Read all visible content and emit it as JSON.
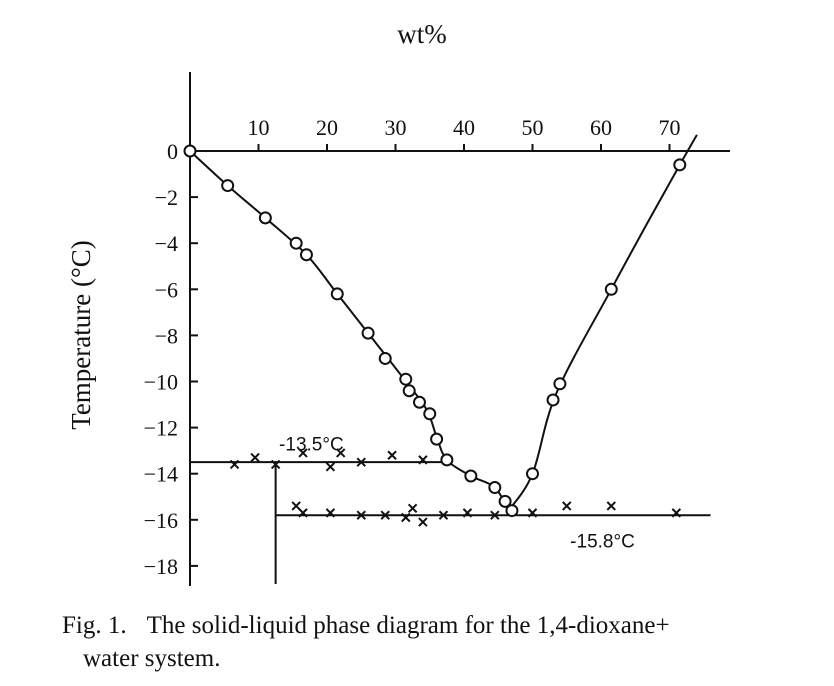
{
  "chart_data": {
    "type": "scatter",
    "title": "",
    "xlabel": "wt%",
    "ylabel": "Temperature (°C)",
    "xlim": [
      0,
      76
    ],
    "ylim": [
      -19.5,
      0
    ],
    "xticks": [
      10,
      20,
      30,
      40,
      50,
      60,
      70
    ],
    "yticks": [
      0,
      -2,
      -4,
      -6,
      -8,
      -10,
      -12,
      -14,
      -16,
      -18
    ],
    "grid": false,
    "series": [
      {
        "marker": "circle",
        "line": "liquidus (1,4-dioxane-poor branch)",
        "x": [
          0,
          5.5,
          11,
          15.5,
          17,
          21.5,
          26,
          28.5,
          31.5,
          32,
          33.5,
          35,
          36,
          37.5,
          41,
          44.5,
          46,
          47
        ],
        "y": [
          0,
          -1.5,
          -2.9,
          -4.0,
          -4.5,
          -6.2,
          -7.9,
          -9.0,
          -9.9,
          -10.4,
          -10.9,
          -11.4,
          -12.5,
          -13.4,
          -14.1,
          -14.6,
          -15.2,
          -15.6
        ]
      },
      {
        "marker": "circle",
        "line": "liquidus (1,4-dioxane-rich branch)",
        "x": [
          50,
          53,
          54,
          61.5,
          71.5
        ],
        "y": [
          -14.0,
          -10.8,
          -10.1,
          -6.0,
          -0.6
        ]
      },
      {
        "marker": "cross",
        "line": "horizontal at -13.5",
        "x": [
          6.5,
          9.5,
          12.5,
          16.5,
          20.5,
          22,
          25,
          29.5,
          34
        ],
        "y": [
          -13.6,
          -13.3,
          -13.6,
          -13.1,
          -13.7,
          -13.1,
          -13.5,
          -13.2,
          -13.4
        ]
      },
      {
        "marker": "cross",
        "line": "horizontal at -15.8",
        "x": [
          15.5,
          16.5,
          20.5,
          25,
          28.5,
          31.5,
          32.5,
          34,
          37,
          40.5,
          44.5,
          50,
          55,
          61.5,
          71
        ],
        "y": [
          -15.4,
          -15.7,
          -15.7,
          -15.8,
          -15.8,
          -15.9,
          -15.5,
          -16.1,
          -15.8,
          -15.7,
          -15.8,
          -15.7,
          -15.4,
          -15.4,
          -15.7
        ]
      }
    ],
    "annotations": [
      {
        "text": "-13.5°C",
        "x": 13,
        "y": -12.7
      },
      {
        "text": "-15.8°C",
        "x": 55.5,
        "y": -16.9
      }
    ]
  },
  "caption": {
    "label": "Fig. 1.",
    "line1": "The solid-liquid phase diagram for the 1,4-dioxane+",
    "line2": "water system."
  }
}
